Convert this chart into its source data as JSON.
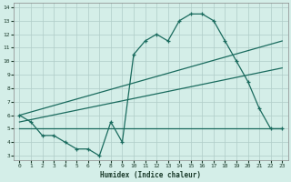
{
  "xlabel": "Humidex (Indice chaleur)",
  "bg_color": "#d4eee8",
  "grid_color": "#b0ccc8",
  "line_color": "#1a6b5e",
  "xlim": [
    -0.5,
    23.5
  ],
  "ylim": [
    2.7,
    14.3
  ],
  "xticks": [
    0,
    1,
    2,
    3,
    4,
    5,
    6,
    7,
    8,
    9,
    10,
    11,
    12,
    13,
    14,
    15,
    16,
    17,
    18,
    19,
    20,
    21,
    22,
    23
  ],
  "yticks": [
    3,
    4,
    5,
    6,
    7,
    8,
    9,
    10,
    11,
    12,
    13,
    14
  ],
  "series1_x": [
    0,
    1,
    2,
    3,
    4,
    5,
    6,
    7,
    8,
    9,
    10,
    11,
    12,
    13,
    14,
    15,
    16,
    17,
    18,
    19,
    20,
    21,
    22,
    23
  ],
  "series1_y": [
    6.0,
    5.5,
    4.5,
    4.5,
    4.0,
    3.5,
    3.5,
    3.0,
    5.5,
    4.0,
    10.5,
    11.5,
    12.0,
    11.5,
    13.0,
    13.5,
    13.5,
    13.0,
    11.5,
    10.0,
    8.5,
    6.5,
    5.0,
    5.0
  ],
  "series2_x": [
    0,
    23
  ],
  "series2_y": [
    5.0,
    5.0
  ],
  "series3_x": [
    0,
    23
  ],
  "series3_y": [
    5.5,
    9.5
  ],
  "series4_x": [
    0,
    23
  ],
  "series4_y": [
    6.0,
    11.5
  ]
}
